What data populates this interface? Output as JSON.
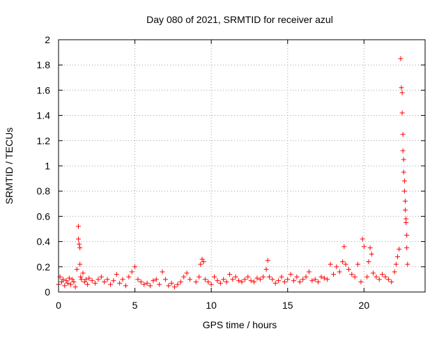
{
  "chart_data": {
    "type": "scatter",
    "title": "Day 080 of 2021, SRMTID for receiver azul",
    "xlabel": "GPS time / hours",
    "ylabel": "SRMTID / TECUs",
    "xlim": [
      0,
      24
    ],
    "ylim": [
      0,
      2
    ],
    "xticks": [
      0,
      5,
      10,
      15,
      20
    ],
    "xtick_labels": [
      "0",
      "5",
      "10",
      "15",
      "20"
    ],
    "yticks": [
      0,
      0.2,
      0.4,
      0.6,
      0.8,
      1,
      1.2,
      1.4,
      1.6,
      1.8,
      2
    ],
    "ytick_labels": [
      "0",
      "0.2",
      "0.4",
      "0.6",
      "0.8",
      "1",
      "1.2",
      "1.4",
      "1.6",
      "1.8",
      "2"
    ],
    "grid": true,
    "marker": "+",
    "color": "#ff0000",
    "series": [
      {
        "name": "SRMTID",
        "x": [
          0.0,
          0.1,
          0.2,
          0.3,
          0.4,
          0.5,
          0.6,
          0.7,
          0.8,
          0.9,
          1.0,
          1.1,
          1.2,
          1.3,
          1.3,
          1.35,
          1.4,
          1.4,
          1.45,
          1.5,
          1.6,
          1.7,
          1.8,
          1.9,
          2.0,
          2.2,
          2.4,
          2.6,
          2.8,
          3.0,
          3.2,
          3.4,
          3.6,
          3.8,
          4.0,
          4.2,
          4.4,
          4.6,
          4.8,
          5.0,
          5.2,
          5.4,
          5.6,
          5.8,
          6.0,
          6.2,
          6.4,
          6.6,
          6.8,
          7.0,
          7.2,
          7.4,
          7.6,
          7.8,
          8.0,
          8.2,
          8.4,
          8.6,
          9.0,
          9.2,
          9.3,
          9.4,
          9.5,
          9.6,
          9.8,
          10.0,
          10.2,
          10.4,
          10.6,
          10.8,
          11.0,
          11.2,
          11.4,
          11.6,
          11.8,
          12.0,
          12.2,
          12.4,
          12.6,
          12.8,
          13.0,
          13.2,
          13.4,
          13.6,
          13.7,
          13.8,
          14.0,
          14.2,
          14.4,
          14.6,
          14.8,
          15.0,
          15.2,
          15.4,
          15.6,
          15.8,
          16.0,
          16.2,
          16.4,
          16.6,
          16.8,
          17.0,
          17.2,
          17.4,
          17.6,
          17.8,
          18.0,
          18.2,
          18.4,
          18.6,
          18.7,
          18.8,
          19.0,
          19.2,
          19.4,
          19.6,
          19.8,
          19.9,
          20.0,
          20.2,
          20.3,
          20.4,
          20.5,
          20.6,
          20.8,
          21.0,
          21.2,
          21.4,
          21.6,
          21.8,
          22.0,
          22.1,
          22.2,
          22.3,
          22.4,
          22.45,
          22.5,
          22.5,
          22.55,
          22.55,
          22.6,
          22.6,
          22.65,
          22.65,
          22.7,
          22.7,
          22.75,
          22.75,
          22.8,
          22.8,
          22.85
        ],
        "y": [
          0.06,
          0.12,
          0.08,
          0.1,
          0.05,
          0.09,
          0.07,
          0.11,
          0.06,
          0.1,
          0.08,
          0.04,
          0.18,
          0.52,
          0.42,
          0.38,
          0.35,
          0.22,
          0.12,
          0.1,
          0.15,
          0.08,
          0.1,
          0.06,
          0.11,
          0.09,
          0.07,
          0.1,
          0.12,
          0.08,
          0.1,
          0.06,
          0.09,
          0.14,
          0.07,
          0.1,
          0.05,
          0.12,
          0.16,
          0.2,
          0.1,
          0.08,
          0.06,
          0.07,
          0.05,
          0.09,
          0.1,
          0.06,
          0.16,
          0.1,
          0.05,
          0.07,
          0.04,
          0.06,
          0.08,
          0.12,
          0.15,
          0.1,
          0.08,
          0.12,
          0.22,
          0.26,
          0.24,
          0.1,
          0.08,
          0.06,
          0.12,
          0.09,
          0.07,
          0.1,
          0.08,
          0.14,
          0.1,
          0.12,
          0.09,
          0.08,
          0.1,
          0.12,
          0.09,
          0.08,
          0.11,
          0.1,
          0.12,
          0.18,
          0.25,
          0.12,
          0.1,
          0.07,
          0.09,
          0.12,
          0.08,
          0.1,
          0.14,
          0.09,
          0.12,
          0.08,
          0.1,
          0.12,
          0.16,
          0.09,
          0.1,
          0.08,
          0.12,
          0.11,
          0.1,
          0.22,
          0.14,
          0.2,
          0.16,
          0.24,
          0.36,
          0.22,
          0.18,
          0.14,
          0.12,
          0.22,
          0.08,
          0.42,
          0.36,
          0.12,
          0.24,
          0.35,
          0.3,
          0.15,
          0.12,
          0.1,
          0.14,
          0.12,
          0.1,
          0.08,
          0.16,
          0.22,
          0.28,
          0.34,
          1.85,
          1.62,
          1.58,
          1.42,
          1.25,
          1.12,
          1.05,
          0.95,
          0.88,
          0.8,
          0.72,
          0.65,
          0.58,
          0.55,
          0.45,
          0.35,
          0.22
        ]
      }
    ]
  }
}
